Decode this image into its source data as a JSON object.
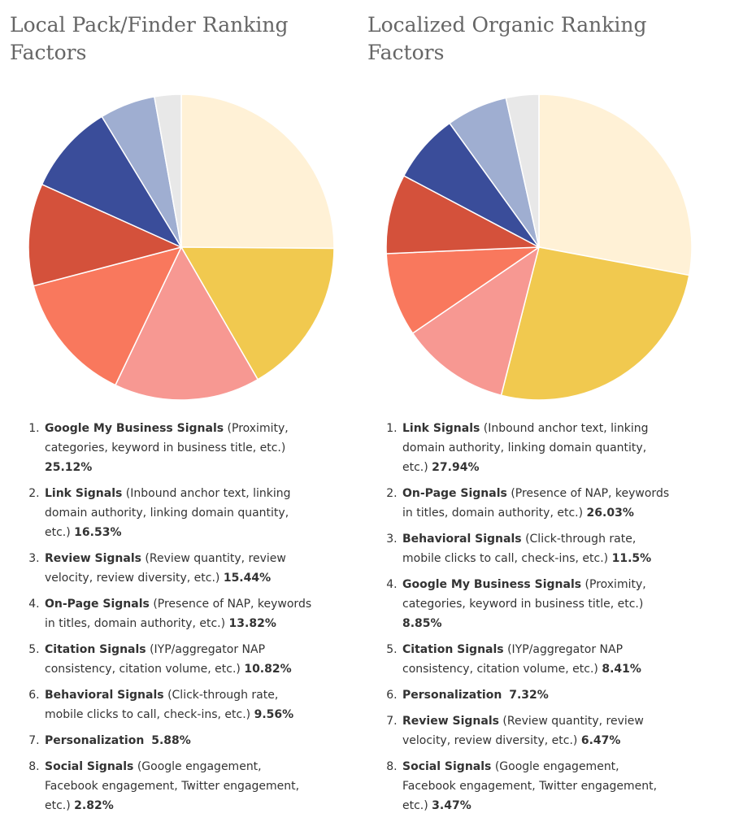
{
  "chart_data": [
    {
      "type": "pie",
      "title": "Local Pack/Finder Ranking Factors",
      "slices": [
        {
          "name": "Google My Business Signals",
          "detail": "(Proximity, categories, keyword in business title, etc.)",
          "label": "25.12%",
          "value": 25.12,
          "color": "#FFF1D6"
        },
        {
          "name": "Link Signals",
          "detail": "(Inbound anchor text, linking domain authority, linking domain quantity, etc.)",
          "label": "16.53%",
          "value": 16.53,
          "color": "#F1C94F"
        },
        {
          "name": "Review Signals",
          "detail": "(Review quantity, review velocity, review diversity, etc.)",
          "label": "15.44%",
          "value": 15.44,
          "color": "#F79892"
        },
        {
          "name": "On-Page Signals",
          "detail": "(Presence of NAP, keywords in titles, domain authority, etc.)",
          "label": "13.82%",
          "value": 13.82,
          "color": "#F9785D"
        },
        {
          "name": "Citation Signals",
          "detail": "(IYP/aggregator NAP consistency, citation volume, etc.)",
          "label": "10.82%",
          "value": 10.82,
          "color": "#D4513B"
        },
        {
          "name": "Behavioral Signals",
          "detail": "(Click-through rate, mobile clicks to call, check-ins, etc.)",
          "label": "9.56%",
          "value": 9.56,
          "color": "#3A4D9A"
        },
        {
          "name": "Personalization",
          "detail": "",
          "label": "5.88%",
          "value": 5.88,
          "color": "#9FAED1"
        },
        {
          "name": "Social Signals",
          "detail": "(Google engagement, Facebook engagement, Twitter engagement, etc.)",
          "label": "2.82%",
          "value": 2.82,
          "color": "#E8E8E8"
        }
      ]
    },
    {
      "type": "pie",
      "title": "Localized Organic Ranking Factors",
      "slices": [
        {
          "name": "Link Signals",
          "detail": "(Inbound anchor text, linking domain authority, linking domain quantity, etc.)",
          "label": "27.94%",
          "value": 27.94,
          "color": "#FFF1D6"
        },
        {
          "name": "On-Page Signals",
          "detail": "(Presence of NAP, keywords in titles, domain authority, etc.)",
          "label": "26.03%",
          "value": 26.03,
          "color": "#F1C94F"
        },
        {
          "name": "Behavioral Signals",
          "detail": "(Click-through rate, mobile clicks to call, check-ins, etc.)",
          "label": "11.5%",
          "value": 11.5,
          "color": "#F79892"
        },
        {
          "name": "Google My Business Signals",
          "detail": "(Proximity, categories, keyword in business title, etc.)",
          "label": "8.85%",
          "value": 8.85,
          "color": "#F9785D"
        },
        {
          "name": "Citation Signals",
          "detail": "(IYP/aggregator NAP consistency, citation volume, etc.)",
          "label": "8.41%",
          "value": 8.41,
          "color": "#D4513B"
        },
        {
          "name": "Personalization",
          "detail": "",
          "label": "7.32%",
          "value": 7.32,
          "color": "#3A4D9A"
        },
        {
          "name": "Review Signals",
          "detail": "(Review quantity, review velocity, review diversity, etc.)",
          "label": "6.47%",
          "value": 6.47,
          "color": "#9FAED1"
        },
        {
          "name": "Social Signals",
          "detail": "(Google engagement, Facebook engagement, Twitter engagement, etc.)",
          "label": "3.47%",
          "value": 3.47,
          "color": "#E8E8E8"
        }
      ]
    }
  ]
}
